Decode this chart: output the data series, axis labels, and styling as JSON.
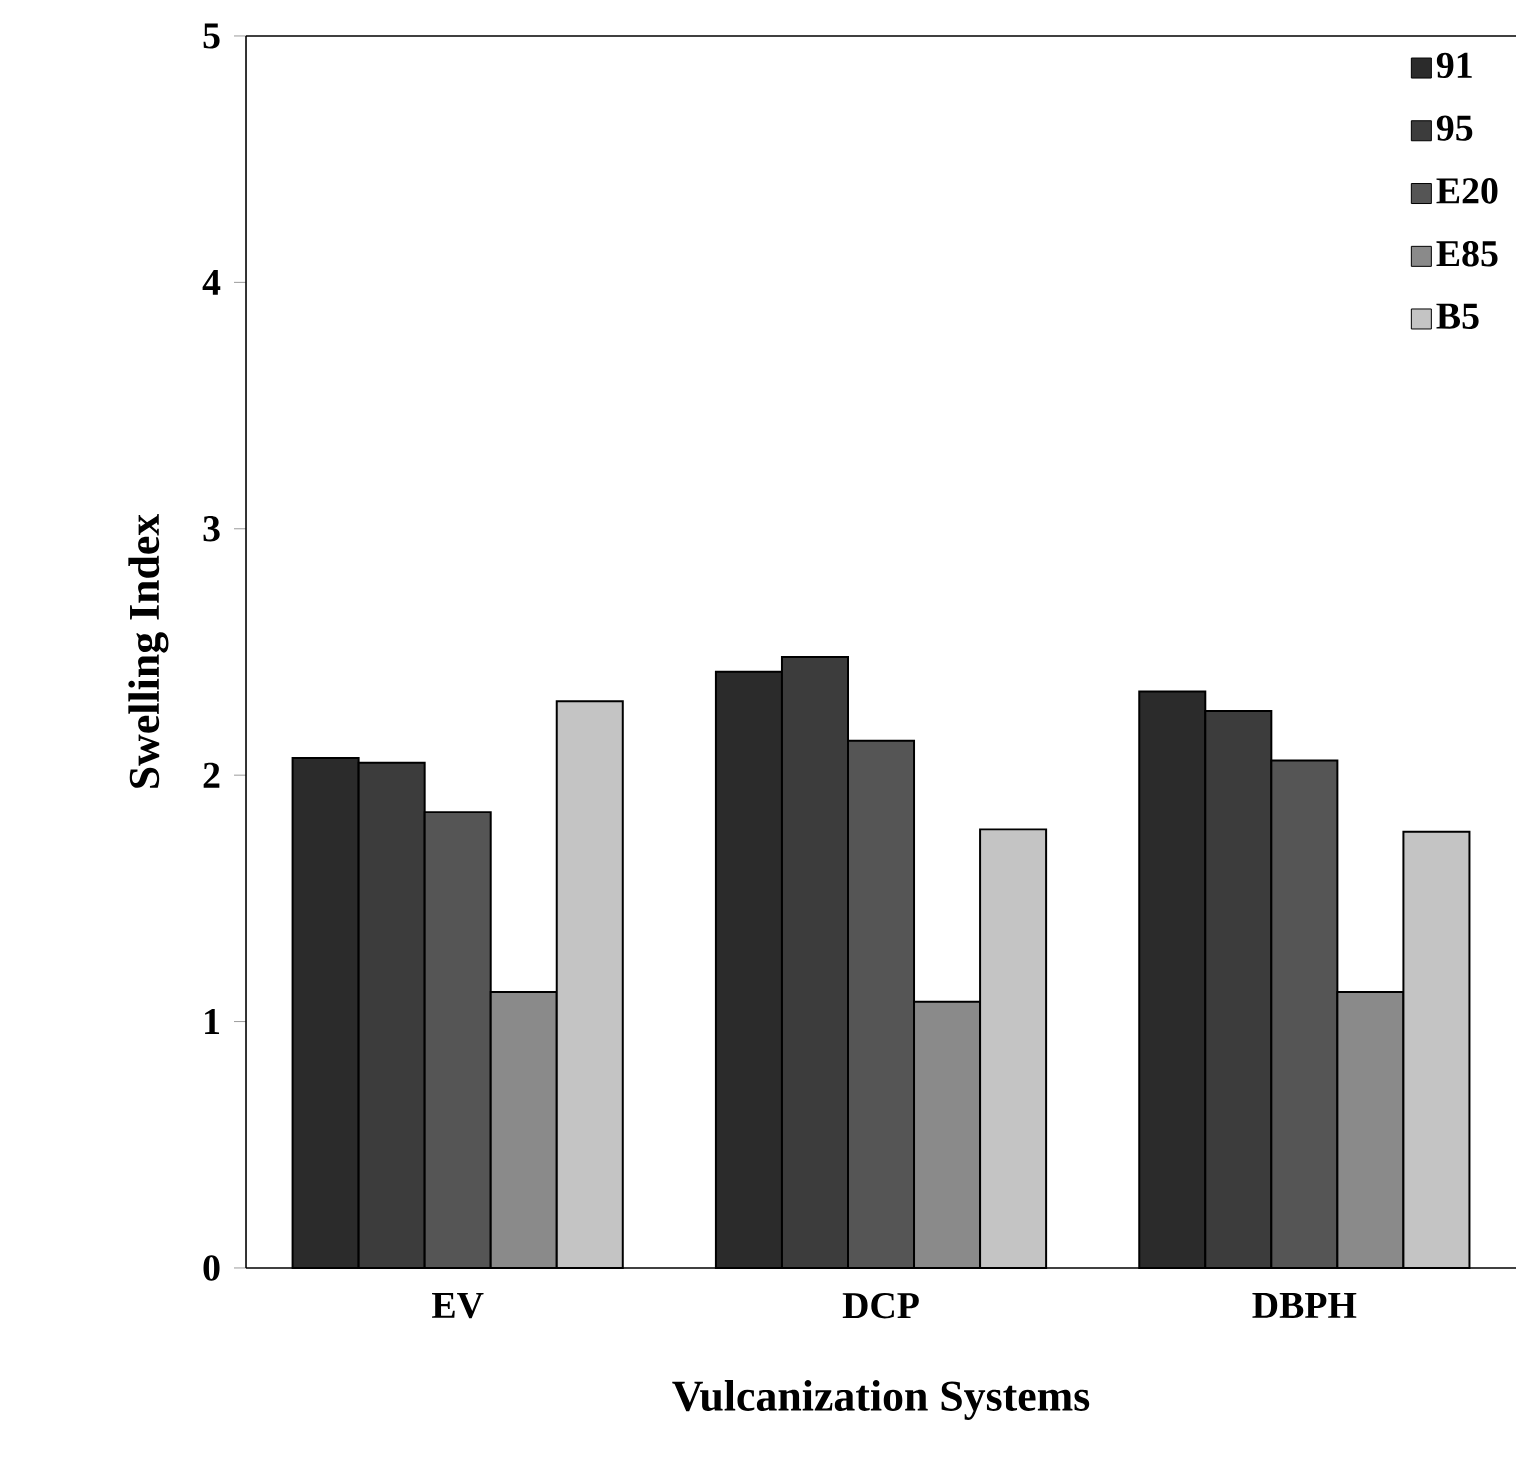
{
  "chart_data": {
    "type": "bar",
    "xlabel": "Vulcanization Systems",
    "ylabel": "Swelling Index",
    "categories": [
      "EV",
      "DCP",
      "DBPH"
    ],
    "series": [
      {
        "name": "91",
        "color": "#2b2b2b",
        "values": [
          2.07,
          2.42,
          2.34
        ]
      },
      {
        "name": "95",
        "color": "#3c3c3c",
        "values": [
          2.05,
          2.48,
          2.26
        ]
      },
      {
        "name": "E20",
        "color": "#555555",
        "values": [
          1.85,
          2.14,
          2.06
        ]
      },
      {
        "name": "E85",
        "color": "#8a8a8a",
        "values": [
          1.12,
          1.08,
          1.12
        ]
      },
      {
        "name": "B5",
        "color": "#c4c4c4",
        "values": [
          2.3,
          1.78,
          1.77
        ]
      }
    ],
    "ylim": [
      0,
      5
    ],
    "yticks": [
      0,
      1,
      2,
      3,
      4,
      5
    ],
    "grid": false,
    "legend": "top right"
  }
}
